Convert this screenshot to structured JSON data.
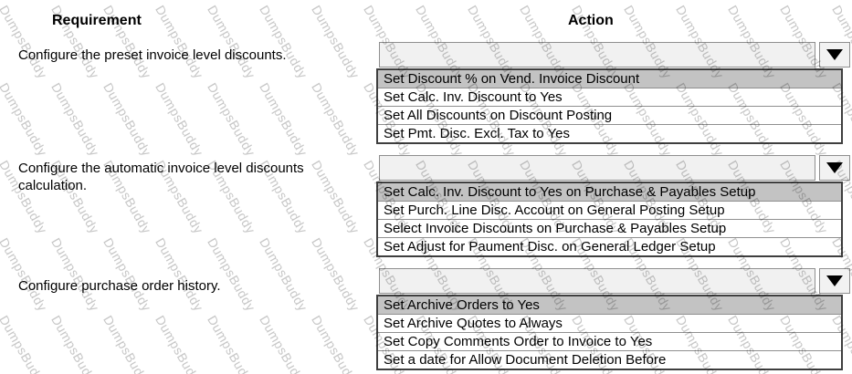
{
  "watermark": {
    "text": "DumpsBuddy",
    "color": "#c7c7c7"
  },
  "headers": {
    "requirement": "Requirement",
    "action": "Action"
  },
  "colors": {
    "option_highlight": "#c3c3c3",
    "closed_box_fill": "#f1f1f1",
    "box_border": "#8f8f8f",
    "list_border": "#3f3f3f",
    "arrow": "#000000"
  },
  "rows": [
    {
      "requirement": "Configure the preset invoice level discounts.",
      "dropdown": {
        "selected_value": "",
        "options": [
          {
            "label": "Set Discount % on Vend. Invoice Discount",
            "highlighted": true
          },
          {
            "label": "Set Calc. Inv. Discount to Yes",
            "highlighted": false
          },
          {
            "label": "Set All Discounts on Discount Posting",
            "highlighted": false
          },
          {
            "label": "Set Pmt. Disc. Excl. Tax to Yes",
            "highlighted": false
          }
        ]
      }
    },
    {
      "requirement": "Configure the automatic invoice level discounts calculation.",
      "dropdown": {
        "selected_value": "",
        "options": [
          {
            "label": "Set Calc. Inv. Discount to Yes on Purchase & Payables Setup",
            "highlighted": true
          },
          {
            "label": "Set Purch. Line Disc. Account on General Posting Setup",
            "highlighted": false
          },
          {
            "label": "Select Invoice Discounts on Purchase & Payables Setup",
            "highlighted": false
          },
          {
            "label": "Set Adjust for Paument Disc. on General Ledger Setup",
            "highlighted": false
          }
        ]
      }
    },
    {
      "requirement": "Configure purchase order history.",
      "dropdown": {
        "selected_value": "",
        "options": [
          {
            "label": "Set Archive Orders to Yes",
            "highlighted": true
          },
          {
            "label": "Set Archive Quotes to Always",
            "highlighted": false
          },
          {
            "label": "Set Copy Comments Order to Invoice to Yes",
            "highlighted": false
          },
          {
            "label": "Set a date for Allow Document Deletion Before",
            "highlighted": false
          }
        ]
      }
    }
  ]
}
